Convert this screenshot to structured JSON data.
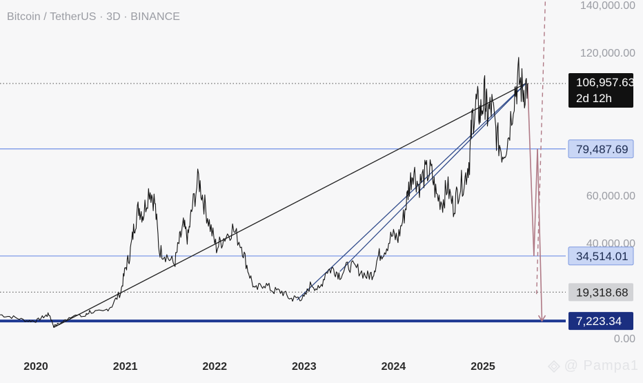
{
  "header": {
    "symbol": "Bitcoin / TetherUS · 3D · BINANCE"
  },
  "watermark": {
    "text": "@ Pampa1",
    "icon": "diamond-logo-icon"
  },
  "colors": {
    "background": "#f7f7f8",
    "price": "#151515",
    "trendline": "#202020",
    "channel": "#2f4a8a",
    "level_blue": "#6f8fe6",
    "support": "#1f3a93",
    "projection": "#b07a86",
    "badge_dark": "#111111",
    "badge_blue": "#c9d6f5",
    "badge_gray": "#d2d3d6",
    "badge_navy": "#1b2f80"
  },
  "chart_data": {
    "type": "line",
    "title": "Bitcoin / TetherUS · 3D · BINANCE",
    "xlabel": "",
    "ylabel": "",
    "xlim": [
      2019.6,
      2025.7
    ],
    "ylim": [
      0,
      140000
    ],
    "x_ticks": [
      "2020",
      "2021",
      "2022",
      "2023",
      "2024",
      "2025"
    ],
    "y_ticks": [
      "140,000.00",
      "120,000.00",
      "60,000.00",
      "40,000.00",
      "0.00"
    ],
    "series": [
      {
        "values": [
          [
            2019.6,
            9800
          ],
          [
            2019.75,
            8800
          ],
          [
            2019.9,
            7300
          ],
          [
            2020.0,
            7200
          ],
          [
            2020.1,
            9300
          ],
          [
            2020.15,
            10000
          ],
          [
            2020.2,
            5000
          ],
          [
            2020.3,
            6800
          ],
          [
            2020.4,
            9500
          ],
          [
            2020.55,
            9200
          ],
          [
            2020.6,
            11200
          ],
          [
            2020.75,
            10800
          ],
          [
            2020.85,
            13700
          ],
          [
            2020.95,
            19500
          ],
          [
            2021.0,
            29000
          ],
          [
            2021.05,
            35000
          ],
          [
            2021.1,
            47000
          ],
          [
            2021.15,
            55000
          ],
          [
            2021.2,
            52000
          ],
          [
            2021.27,
            63000
          ],
          [
            2021.33,
            57000
          ],
          [
            2021.38,
            37000
          ],
          [
            2021.45,
            35000
          ],
          [
            2021.55,
            31000
          ],
          [
            2021.6,
            40000
          ],
          [
            2021.65,
            47000
          ],
          [
            2021.7,
            42000
          ],
          [
            2021.75,
            55000
          ],
          [
            2021.82,
            67000
          ],
          [
            2021.88,
            57000
          ],
          [
            2021.95,
            47000
          ],
          [
            2022.02,
            38000
          ],
          [
            2022.1,
            42000
          ],
          [
            2022.2,
            46000
          ],
          [
            2022.3,
            39000
          ],
          [
            2022.37,
            29000
          ],
          [
            2022.45,
            20000
          ],
          [
            2022.55,
            23000
          ],
          [
            2022.65,
            20000
          ],
          [
            2022.75,
            19500
          ],
          [
            2022.85,
            16500
          ],
          [
            2022.92,
            17000
          ],
          [
            2023.0,
            16800
          ],
          [
            2023.08,
            23000
          ],
          [
            2023.17,
            20000
          ],
          [
            2023.25,
            28500
          ],
          [
            2023.33,
            29000
          ],
          [
            2023.4,
            26500
          ],
          [
            2023.5,
            30500
          ],
          [
            2023.6,
            29000
          ],
          [
            2023.7,
            26000
          ],
          [
            2023.77,
            27000
          ],
          [
            2023.83,
            34500
          ],
          [
            2023.9,
            37000
          ],
          [
            2023.98,
            43000
          ],
          [
            2024.05,
            42000
          ],
          [
            2024.12,
            52000
          ],
          [
            2024.17,
            63000
          ],
          [
            2024.22,
            71000
          ],
          [
            2024.28,
            64000
          ],
          [
            2024.35,
            69000
          ],
          [
            2024.42,
            70000
          ],
          [
            2024.48,
            60000
          ],
          [
            2024.55,
            57000
          ],
          [
            2024.6,
            64000
          ],
          [
            2024.67,
            55000
          ],
          [
            2024.73,
            63000
          ],
          [
            2024.8,
            67000
          ],
          [
            2024.85,
            75000
          ],
          [
            2024.88,
            92000
          ],
          [
            2024.93,
            99000
          ],
          [
            2024.97,
            94000
          ],
          [
            2025.02,
            102000
          ],
          [
            2025.05,
            94000
          ],
          [
            2025.1,
            97000
          ],
          [
            2025.16,
            84000
          ],
          [
            2025.22,
            78000
          ],
          [
            2025.28,
            84000
          ],
          [
            2025.35,
            103000
          ],
          [
            2025.4,
            109000
          ],
          [
            2025.45,
            104000
          ],
          [
            2025.5,
            107000
          ]
        ]
      }
    ],
    "trendlines": [
      {
        "from": [
          2020.2,
          4500
        ],
        "to": [
          2025.48,
          107000
        ]
      },
      {
        "from": [
          2022.92,
          16000
        ],
        "to": [
          2025.48,
          107000
        ]
      },
      {
        "from": [
          2023.4,
          28000
        ],
        "to": [
          2025.48,
          107000
        ]
      }
    ],
    "levels": [
      {
        "value": 106957.63,
        "label": "106,957.63",
        "sublabel": "2d 12h",
        "style": "dotted"
      },
      {
        "value": 79487.69,
        "label": "79,487.69",
        "style": "solid"
      },
      {
        "value": 34514.01,
        "label": "34,514.01",
        "style": "solid"
      },
      {
        "value": 19318.68,
        "label": "19,318.68",
        "style": "dotted"
      },
      {
        "value": 7223.34,
        "label": "7,223.34",
        "style": "thick"
      }
    ],
    "projections": [
      {
        "from": [
          2025.5,
          107000
        ],
        "to": [
          2025.57,
          34514
        ]
      },
      {
        "from": [
          2025.57,
          34514
        ],
        "to": [
          2025.61,
          79487
        ]
      },
      {
        "from": [
          2025.61,
          79487
        ],
        "to": [
          2025.66,
          7223
        ]
      }
    ],
    "dashed_projection": {
      "from": [
        2025.6,
        18500
      ],
      "to": [
        2025.7,
        145000
      ]
    },
    "grid": false,
    "legend": "none"
  }
}
